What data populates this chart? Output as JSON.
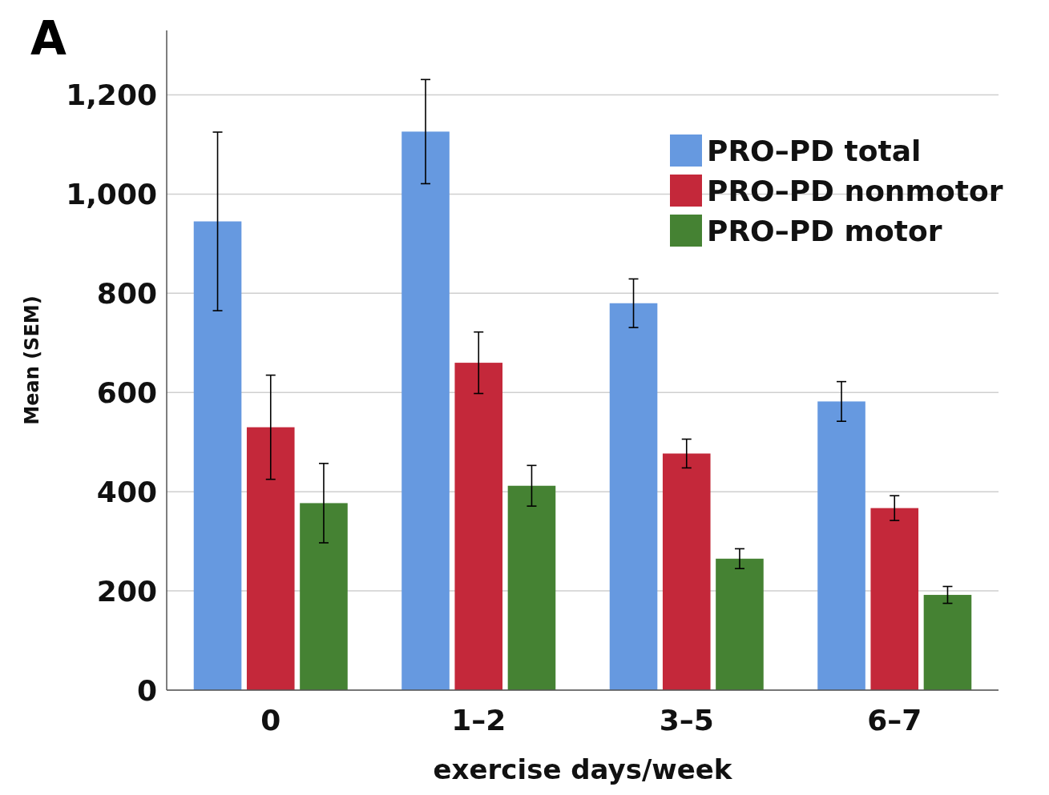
{
  "chart_data": {
    "type": "bar",
    "xlabel": "exercise days/week",
    "ylabel": "Mean (SEM)",
    "annotations": [
      "A"
    ],
    "categories": [
      "0",
      "1–2",
      "3–5",
      "6–7"
    ],
    "series": [
      {
        "name": "PRO–PD total",
        "color": "#6699e0",
        "values": [
          945,
          1126,
          780,
          582
        ],
        "errors": [
          180,
          105,
          49,
          40
        ]
      },
      {
        "name": "PRO–PD nonmotor",
        "color": "#c4283a",
        "values": [
          530,
          660,
          477,
          367
        ],
        "errors": [
          105,
          62,
          29,
          25
        ]
      },
      {
        "name": "PRO–PD motor",
        "color": "#458233",
        "values": [
          377,
          412,
          265,
          192
        ],
        "errors": [
          80,
          41,
          20,
          17
        ]
      }
    ],
    "ylim": [
      0,
      1330
    ],
    "yticks": [
      0,
      {
        "value": 200,
        "label": "200"
      },
      {
        "value": 400,
        "label": "400"
      },
      {
        "value": 600,
        "label": "600"
      },
      {
        "value": 800,
        "label": "800"
      },
      {
        "value": 1000,
        "label": "1,000"
      },
      {
        "value": 1200,
        "label": "1,200"
      }
    ],
    "grid": "y",
    "legend": "top right"
  }
}
